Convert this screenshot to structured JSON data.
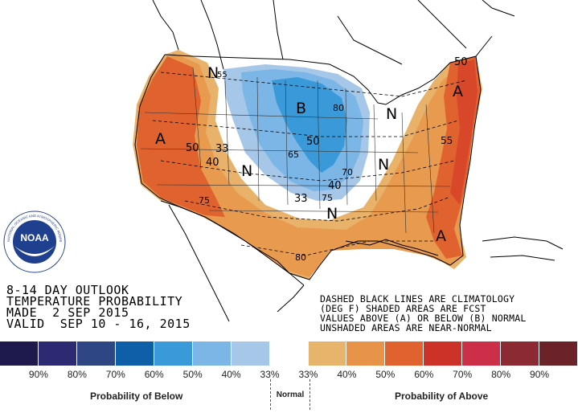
{
  "title_block": {
    "line1": "8-14 DAY OUTLOOK",
    "line2": "TEMPERATURE PROBABILITY",
    "line3": "MADE  2 SEP 2015",
    "line4": "VALID  SEP 10 - 16, 2015"
  },
  "notes": {
    "line1": "DASHED BLACK LINES ARE CLIMATOLOGY",
    "line2": "(DEG F) SHADED AREAS ARE FCST",
    "line3": "VALUES ABOVE (A) OR BELOW (B) NORMAL",
    "line4": "UNSHADED AREAS ARE NEAR-NORMAL"
  },
  "logo": {
    "text": "NOAA",
    "ring_text": "NATIONAL OCEANIC AND ATMOSPHERIC ADMINISTRATION · U.S. DEPARTMENT OF COMMERCE"
  },
  "map_labels": {
    "above_west": "A",
    "above_northeast": "A",
    "above_southeast": "A",
    "below_center": "B",
    "normal_nw": "N",
    "normal_center": "N",
    "normal_south": "N",
    "normal_mich": "N",
    "normal_ohio": "N",
    "iso_50_west": "50",
    "iso_40_west": "40",
    "iso_33_west": "33",
    "iso_75_sw": "75",
    "iso_50_ne": "50",
    "iso_80_mn": "80",
    "iso_65_ia": "65",
    "iso_50_mn": "50",
    "iso_70_ks": "70",
    "iso_40_mo": "40",
    "iso_33_ok": "33",
    "iso_75_ok": "75",
    "iso_80_tx": "80",
    "iso_55_mont": "55",
    "iso_55_va": "55"
  },
  "legend": {
    "colors": [
      "#1e1a4d",
      "#2b2a72",
      "#2f4685",
      "#0f5ea8",
      "#3a9ad9",
      "#7bb6e6",
      "#a7c7e8",
      "#ffffff",
      "#e6b46a",
      "#e8934a",
      "#e0622f",
      "#cc3228",
      "#cc3048",
      "#8c2a33",
      "#6b2228"
    ],
    "ticks": [
      "90%",
      "80%",
      "70%",
      "60%",
      "50%",
      "40%",
      "33%",
      "33%",
      "40%",
      "50%",
      "60%",
      "70%",
      "80%",
      "90%"
    ],
    "below_label": "Probability of Below",
    "normal_label": "Normal",
    "above_label": "Probability of Above"
  }
}
